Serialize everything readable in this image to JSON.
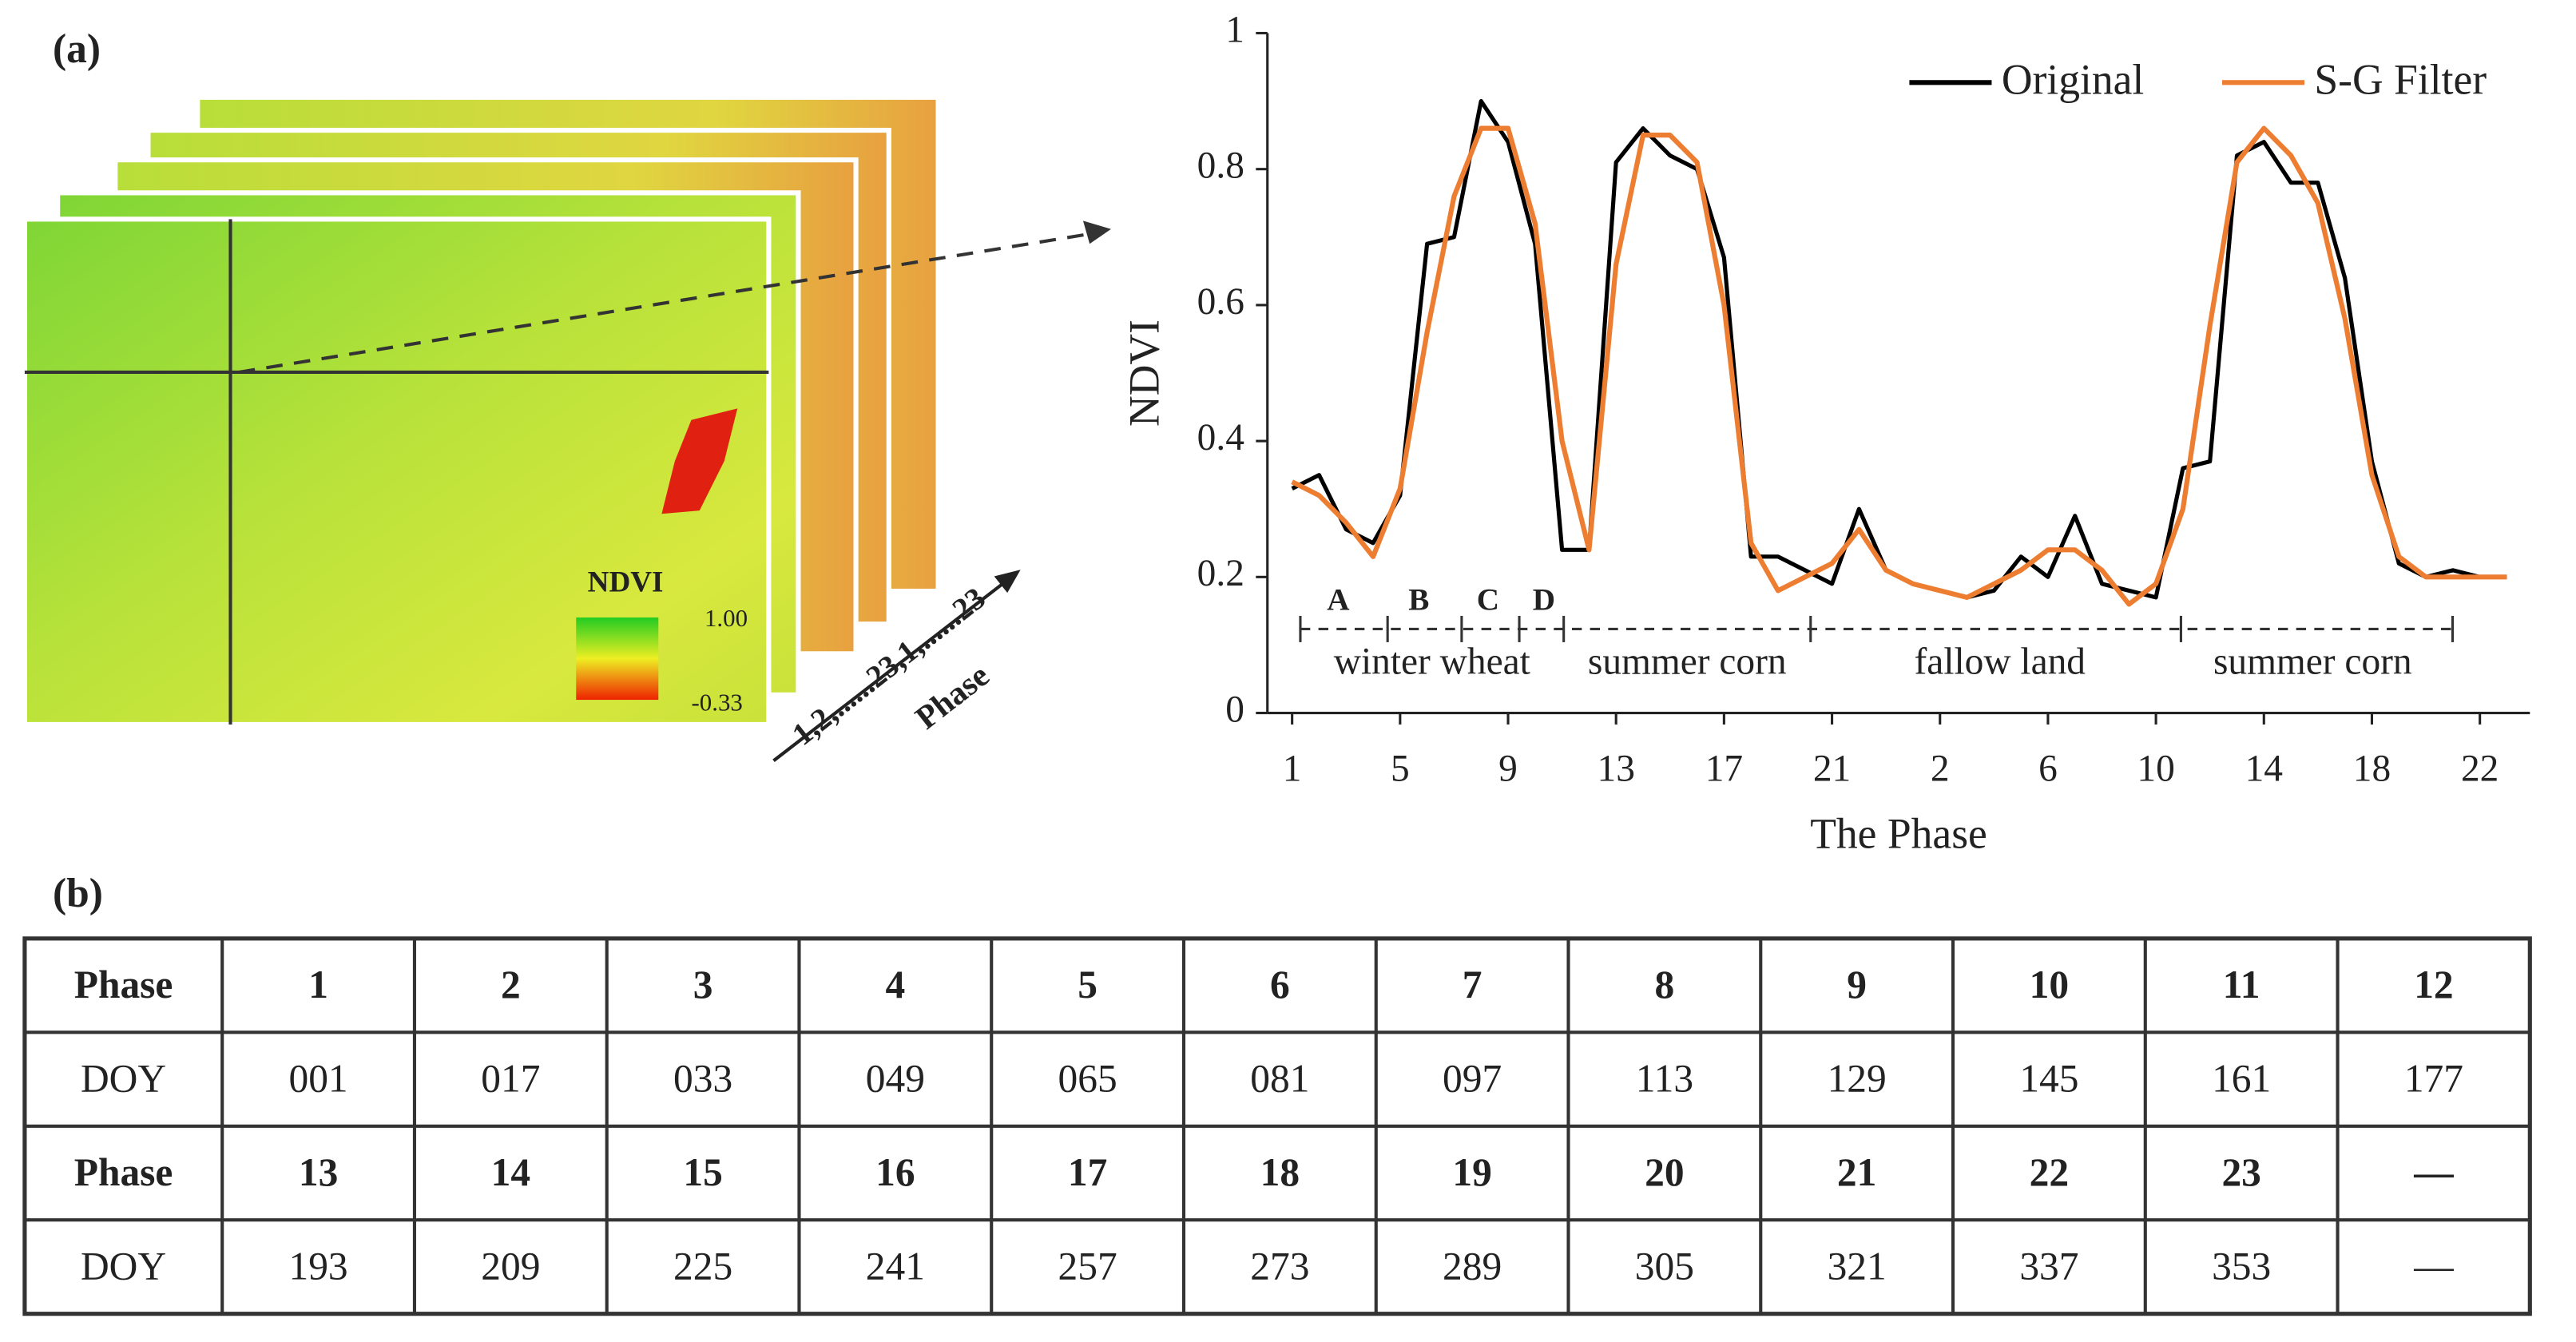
{
  "panel_labels": [
    "(a)",
    "(b)"
  ],
  "image": {
    "legend_title": "NDVI",
    "legend_max": "1.00",
    "legend_min": "-0.33",
    "stack_axis": "1,2,......23,1,......23",
    "stack_axis_title": "Phase"
  },
  "chart_data": {
    "type": "line",
    "ylabel": "NDVI",
    "xlabel": "The Phase",
    "categories": [
      "1",
      null,
      null,
      null,
      "5",
      null,
      null,
      null,
      "9",
      null,
      null,
      null,
      "13",
      null,
      null,
      null,
      "17",
      null,
      null,
      null,
      "21",
      null,
      null,
      null,
      "2",
      null,
      null,
      null,
      "6",
      null,
      null,
      null,
      "10",
      null,
      null,
      null,
      "14",
      null,
      null,
      null,
      "18",
      null,
      null,
      null,
      "22",
      null
    ],
    "series": [
      {
        "name": "Original",
        "color": "#000000",
        "values": [
          0.33,
          0.35,
          0.27,
          0.25,
          0.32,
          0.69,
          0.7,
          0.9,
          0.84,
          0.69,
          0.24,
          0.24,
          0.81,
          0.86,
          0.82,
          0.8,
          0.67,
          0.23,
          0.23,
          0.21,
          0.19,
          0.3,
          0.21,
          0.19,
          0.18,
          0.17,
          0.18,
          0.23,
          0.2,
          0.29,
          0.19,
          0.18,
          0.17,
          0.36,
          0.37,
          0.82,
          0.84,
          0.78,
          0.78,
          0.64,
          0.37,
          0.22,
          0.2,
          0.21,
          0.2,
          0.2
        ]
      },
      {
        "name": "S-G Filter",
        "color": "#ed7d31",
        "values": [
          0.34,
          0.32,
          0.28,
          0.23,
          0.33,
          0.56,
          0.76,
          0.86,
          0.86,
          0.72,
          0.4,
          0.24,
          0.66,
          0.85,
          0.85,
          0.81,
          0.6,
          0.25,
          0.18,
          0.2,
          0.22,
          0.27,
          0.21,
          0.19,
          0.18,
          0.17,
          0.19,
          0.21,
          0.24,
          0.24,
          0.21,
          0.16,
          0.19,
          0.3,
          0.57,
          0.81,
          0.86,
          0.82,
          0.75,
          0.58,
          0.35,
          0.23,
          0.2,
          0.2,
          0.2,
          0.2
        ]
      }
    ],
    "ylim": [
      0,
      1
    ],
    "yticks": [
      0,
      0.2,
      0.4,
      0.6,
      0.8,
      1
    ],
    "legend": "upper right",
    "stages": [
      "A",
      "B",
      "C",
      "D"
    ],
    "crops": [
      "winter wheat",
      "summer corn",
      "fallow land",
      "summer corn"
    ]
  },
  "table": {
    "rows": [
      [
        "Phase",
        "1",
        "2",
        "3",
        "4",
        "5",
        "6",
        "7",
        "8",
        "9",
        "10",
        "11",
        "12"
      ],
      [
        "DOY",
        "001",
        "017",
        "033",
        "049",
        "065",
        "081",
        "097",
        "113",
        "129",
        "145",
        "161",
        "177"
      ],
      [
        "Phase",
        "13",
        "14",
        "15",
        "16",
        "17",
        "18",
        "19",
        "20",
        "21",
        "22",
        "23",
        "—"
      ],
      [
        "DOY",
        "193",
        "209",
        "225",
        "241",
        "257",
        "273",
        "289",
        "305",
        "321",
        "337",
        "353",
        "—"
      ]
    ]
  }
}
